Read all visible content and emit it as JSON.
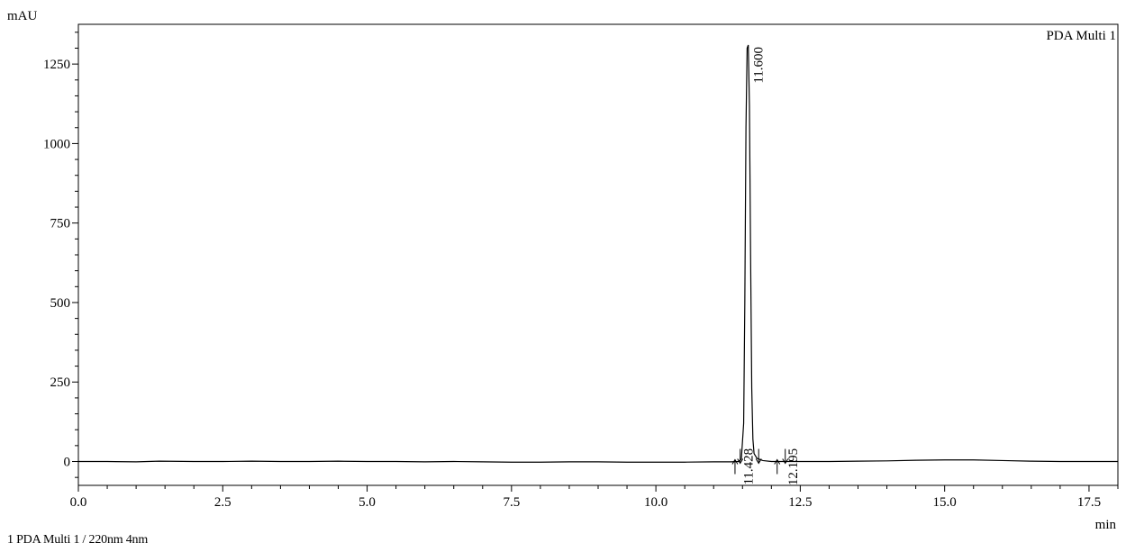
{
  "chart_data": {
    "type": "line",
    "title": "",
    "channel_label": "PDA Multi 1",
    "ylabel": "mAU",
    "xlabel": "min",
    "xlim": [
      0.0,
      18.0
    ],
    "ylim": [
      -75,
      1375
    ],
    "x_ticks": [
      0.0,
      2.5,
      5.0,
      7.5,
      10.0,
      12.5,
      15.0,
      17.5
    ],
    "x_tick_labels": [
      "0.0",
      "2.5",
      "5.0",
      "7.5",
      "10.0",
      "12.5",
      "15.0",
      "17.5"
    ],
    "y_ticks": [
      0,
      250,
      500,
      750,
      1000,
      1250
    ],
    "y_tick_labels": [
      "0",
      "250",
      "500",
      "750",
      "1000",
      "1250"
    ],
    "grid": false,
    "series": [
      {
        "name": "PDA Multi 1",
        "x": [
          0.0,
          0.5,
          1.0,
          1.4,
          2.0,
          2.5,
          3.0,
          3.5,
          4.0,
          4.5,
          5.0,
          5.5,
          6.0,
          6.5,
          7.0,
          7.5,
          8.0,
          8.5,
          9.0,
          9.5,
          10.0,
          10.5,
          11.0,
          11.3,
          11.43,
          11.48,
          11.52,
          11.54,
          11.56,
          11.58,
          11.6,
          11.62,
          11.64,
          11.66,
          11.68,
          11.7,
          11.75,
          11.85,
          12.0,
          12.2,
          12.5,
          13.0,
          13.5,
          14.0,
          14.5,
          15.0,
          15.5,
          16.0,
          16.5,
          17.0,
          17.5,
          18.0
        ],
        "y": [
          0,
          0,
          -1,
          1,
          0,
          0,
          1,
          0,
          0,
          1,
          0,
          0,
          -1,
          0,
          -1,
          -2,
          -2,
          -1,
          -1,
          -2,
          -2,
          -2,
          -1,
          -1,
          0,
          8,
          120,
          500,
          1050,
          1300,
          1310,
          1120,
          650,
          230,
          70,
          25,
          10,
          3,
          0,
          0,
          0,
          0,
          1,
          2,
          4,
          5,
          5,
          3,
          1,
          0,
          0,
          0
        ]
      }
    ],
    "peaks": [
      {
        "rt_label": "11.428",
        "rt": 11.428
      },
      {
        "rt_label": "11.600",
        "rt": 11.6
      },
      {
        "rt_label": "12.195",
        "rt": 12.195
      }
    ],
    "integration_markers": [
      11.37,
      11.46,
      11.78,
      12.1,
      12.24
    ]
  },
  "footer": {
    "legend_text": "1  PDA Multi 1 / 220nm 4nm"
  }
}
